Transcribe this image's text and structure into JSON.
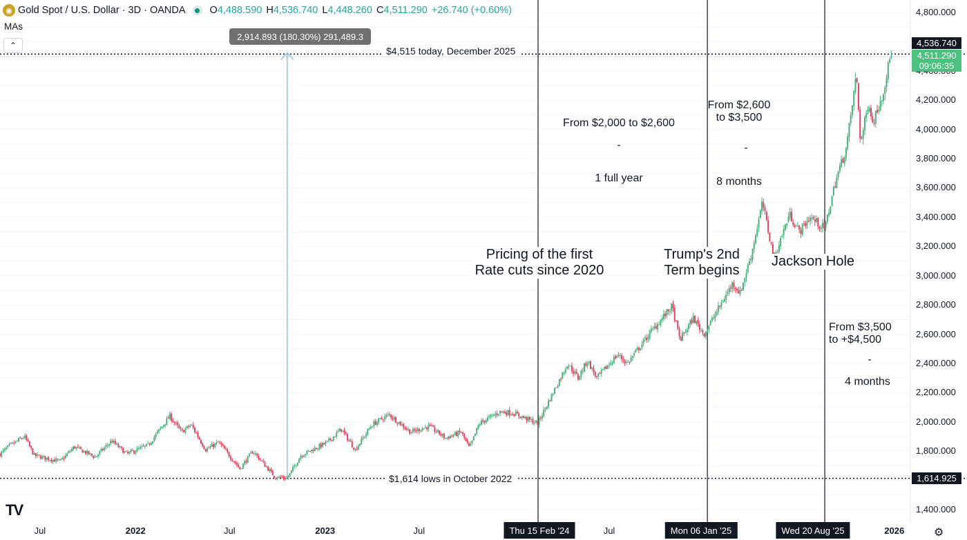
{
  "header": {
    "logo": "gold-coin-icon",
    "title": "Gold Spot / U.S. Dollar · 3D · OANDA",
    "o_label": "O",
    "o_value": "4,488.590",
    "h_label": "H",
    "h_value": "4,536.740",
    "l_label": "L",
    "l_value": "4,448.260",
    "c_label": "C",
    "c_value": "4,511.290",
    "change": "+26.740 (+0.60%)",
    "status_icon": "market-open-icon"
  },
  "indicators": {
    "mas_label": "MAs",
    "collapse_icon": "chevron-up-icon"
  },
  "measure": {
    "text": "2,914.893 (180.30%) 291,489.3"
  },
  "lines": {
    "top_label": "$4,515 today, December 2025",
    "bottom_label": "$1,614 lows in October 2022"
  },
  "annotations": {
    "rate_cuts": "Pricing of the first\nRate cuts since 2020",
    "trump": "Trump's 2nd\nTerm begins",
    "jackson": "Jackson Hole",
    "period1_range": "From $2,000 to $2,600",
    "period1_dash": "-",
    "period1_time": "1 full year",
    "period2_range": "From $2,600\nto $3,500",
    "period2_dash": "-",
    "period2_time": "8 months",
    "period3_range": "From $3,500\nto +$4,500",
    "period3_dash": "-",
    "period3_time": "4 months"
  },
  "price_tags": {
    "high": "4,536.740",
    "last": "4,511.290",
    "countdown": "09:06:35",
    "low": "1,614.925"
  },
  "date_tags": [
    "Thu 15 Feb '24",
    "Mon 06 Jan '25",
    "Wed 20 Aug '25"
  ],
  "footer": {
    "brand": "TV",
    "settings_icon": "gear-icon"
  },
  "colors": {
    "up": "#26a69a",
    "up_candle": "#4caf7d",
    "down": "#e0435f",
    "measure_line": "#90c4e0"
  },
  "chart_data": {
    "type": "candlestick",
    "title": "Gold Spot / U.S. Dollar · 3D · OANDA",
    "x_ticks": [
      {
        "label": "Jul",
        "bold": false
      },
      {
        "label": "2022",
        "bold": true
      },
      {
        "label": "Jul",
        "bold": false
      },
      {
        "label": "2023",
        "bold": true
      },
      {
        "label": "Jul",
        "bold": false
      },
      {
        "label": "Jul",
        "bold": false
      },
      {
        "label": "2026",
        "bold": true
      }
    ],
    "y_ticks": [
      "4,800.000",
      "4,400.000",
      "4,200.000",
      "4,000.000",
      "3,800.000",
      "3,600.000",
      "3,400.000",
      "3,200.000",
      "3,000.000",
      "2,800.000",
      "2,600.000",
      "2,400.000",
      "2,200.000",
      "2,000.000",
      "1,800.000",
      "1,400.000"
    ],
    "y_tick_values": [
      4800,
      4400,
      4200,
      4000,
      3800,
      3600,
      3400,
      3200,
      3000,
      2800,
      2600,
      2400,
      2200,
      2000,
      1800,
      1400
    ],
    "ylim": [
      1340,
      4860
    ],
    "grid": true,
    "horizontal_lines": [
      4515,
      1614
    ],
    "measure": {
      "from": 1614,
      "to": 4529
    },
    "vertical_events": [
      "2024-02-15",
      "2025-01-06",
      "2025-08-20"
    ],
    "price_path": [
      [
        "2021-04-15",
        1780
      ],
      [
        "2021-05-01",
        1830
      ],
      [
        "2021-06-01",
        1900
      ],
      [
        "2021-06-20",
        1770
      ],
      [
        "2021-08-09",
        1730
      ],
      [
        "2021-09-05",
        1830
      ],
      [
        "2021-10-15",
        1760
      ],
      [
        "2021-11-16",
        1870
      ],
      [
        "2021-12-15",
        1780
      ],
      [
        "2022-01-25",
        1840
      ],
      [
        "2022-03-08",
        2040
      ],
      [
        "2022-03-30",
        1930
      ],
      [
        "2022-04-18",
        1980
      ],
      [
        "2022-05-16",
        1810
      ],
      [
        "2022-06-10",
        1860
      ],
      [
        "2022-07-21",
        1680
      ],
      [
        "2022-08-15",
        1800
      ],
      [
        "2022-09-26",
        1625
      ],
      [
        "2022-10-20",
        1614
      ],
      [
        "2022-11-15",
        1770
      ],
      [
        "2023-01-05",
        1860
      ],
      [
        "2023-02-01",
        1950
      ],
      [
        "2023-02-28",
        1810
      ],
      [
        "2023-04-01",
        1980
      ],
      [
        "2023-05-04",
        2050
      ],
      [
        "2023-06-15",
        1930
      ],
      [
        "2023-07-20",
        1970
      ],
      [
        "2023-08-21",
        1890
      ],
      [
        "2023-09-20",
        1930
      ],
      [
        "2023-10-06",
        1820
      ],
      [
        "2023-10-25",
        1990
      ],
      [
        "2023-12-04",
        2070
      ],
      [
        "2023-12-29",
        2060
      ],
      [
        "2024-02-14",
        1990
      ],
      [
        "2024-03-05",
        2130
      ],
      [
        "2024-04-12",
        2400
      ],
      [
        "2024-05-02",
        2300
      ],
      [
        "2024-05-20",
        2420
      ],
      [
        "2024-06-07",
        2300
      ],
      [
        "2024-07-17",
        2460
      ],
      [
        "2024-08-05",
        2400
      ],
      [
        "2024-09-20",
        2620
      ],
      [
        "2024-10-30",
        2790
      ],
      [
        "2024-11-14",
        2560
      ],
      [
        "2024-12-10",
        2710
      ],
      [
        "2024-12-30",
        2600
      ],
      [
        "2025-01-06",
        2640
      ],
      [
        "2025-02-24",
        2950
      ],
      [
        "2025-03-10",
        2880
      ],
      [
        "2025-04-01",
        3150
      ],
      [
        "2025-04-22",
        3500
      ],
      [
        "2025-05-14",
        3120
      ],
      [
        "2025-06-13",
        3420
      ],
      [
        "2025-07-02",
        3300
      ],
      [
        "2025-07-23",
        3400
      ],
      [
        "2025-08-20",
        3320
      ],
      [
        "2025-09-10",
        3650
      ],
      [
        "2025-10-01",
        3880
      ],
      [
        "2025-10-20",
        4380
      ],
      [
        "2025-10-28",
        3900
      ],
      [
        "2025-11-13",
        4200
      ],
      [
        "2025-11-20",
        4040
      ],
      [
        "2025-12-10",
        4250
      ],
      [
        "2025-12-26",
        4529
      ]
    ]
  }
}
